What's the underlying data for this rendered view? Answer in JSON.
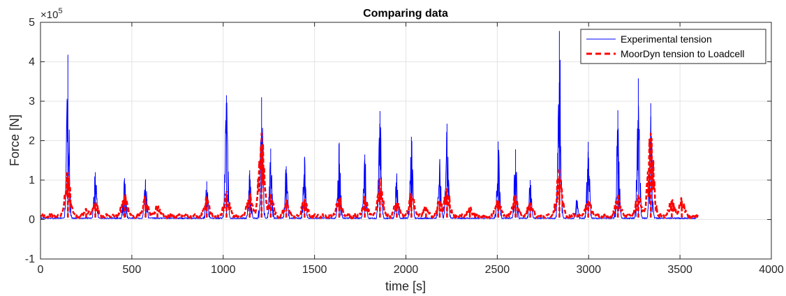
{
  "chart_data": {
    "type": "line",
    "title": "Comparing data",
    "xlabel": "time [s]",
    "ylabel": "Force [N]",
    "xlim": [
      0,
      4000
    ],
    "ylim": [
      -1,
      5
    ],
    "y_multiplier_base": "×10",
    "y_multiplier_exp": "5",
    "x_ticks": [
      0,
      500,
      1000,
      1500,
      2000,
      2500,
      3000,
      3500,
      4000
    ],
    "x_tick_labels": [
      "0",
      "500",
      "1000",
      "1500",
      "2000",
      "2500",
      "3000",
      "3500",
      "4000"
    ],
    "y_ticks": [
      -1,
      0,
      1,
      2,
      3,
      4,
      5
    ],
    "y_tick_labels": [
      "-1",
      "0",
      "1",
      "2",
      "3",
      "4",
      "5"
    ],
    "grid": true,
    "legend_position": "top-right",
    "series": [
      {
        "name": "Experimental tension",
        "color": "#0000ff",
        "style": "solid",
        "baseline": 0.03,
        "end_x": 3590,
        "peaks": [
          {
            "x": 150,
            "y": 4.18
          },
          {
            "x": 300,
            "y": 1.2
          },
          {
            "x": 460,
            "y": 1.05
          },
          {
            "x": 575,
            "y": 1.02
          },
          {
            "x": 910,
            "y": 0.97
          },
          {
            "x": 1018,
            "y": 3.15
          },
          {
            "x": 1145,
            "y": 1.25
          },
          {
            "x": 1210,
            "y": 3.1
          },
          {
            "x": 1260,
            "y": 1.8
          },
          {
            "x": 1345,
            "y": 1.35
          },
          {
            "x": 1445,
            "y": 1.57
          },
          {
            "x": 1635,
            "y": 1.95
          },
          {
            "x": 1775,
            "y": 1.65
          },
          {
            "x": 1858,
            "y": 2.75
          },
          {
            "x": 1950,
            "y": 1.17
          },
          {
            "x": 2030,
            "y": 2.1
          },
          {
            "x": 2185,
            "y": 1.52
          },
          {
            "x": 2225,
            "y": 2.43
          },
          {
            "x": 2505,
            "y": 1.98
          },
          {
            "x": 2600,
            "y": 1.78
          },
          {
            "x": 2680,
            "y": 1.0
          },
          {
            "x": 2840,
            "y": 4.78
          },
          {
            "x": 2935,
            "y": 0.5
          },
          {
            "x": 2998,
            "y": 1.97
          },
          {
            "x": 3160,
            "y": 2.77
          },
          {
            "x": 3272,
            "y": 3.58
          },
          {
            "x": 3340,
            "y": 2.95
          }
        ]
      },
      {
        "name": "MoorDyn tension to Loadcell",
        "color": "#ff0000",
        "style": "dashed",
        "baseline": 0.08,
        "end_x": 3600,
        "peaks": [
          {
            "x": 150,
            "y": 1.2
          },
          {
            "x": 250,
            "y": 0.25
          },
          {
            "x": 300,
            "y": 0.42
          },
          {
            "x": 460,
            "y": 0.6
          },
          {
            "x": 575,
            "y": 0.55
          },
          {
            "x": 640,
            "y": 0.35
          },
          {
            "x": 910,
            "y": 0.55
          },
          {
            "x": 1018,
            "y": 0.72
          },
          {
            "x": 1145,
            "y": 0.62
          },
          {
            "x": 1210,
            "y": 2.2
          },
          {
            "x": 1260,
            "y": 0.62
          },
          {
            "x": 1345,
            "y": 0.42
          },
          {
            "x": 1445,
            "y": 0.45
          },
          {
            "x": 1635,
            "y": 0.52
          },
          {
            "x": 1775,
            "y": 0.5
          },
          {
            "x": 1858,
            "y": 0.98
          },
          {
            "x": 1950,
            "y": 0.42
          },
          {
            "x": 2030,
            "y": 0.62
          },
          {
            "x": 2110,
            "y": 0.32
          },
          {
            "x": 2185,
            "y": 0.48
          },
          {
            "x": 2225,
            "y": 0.82
          },
          {
            "x": 2350,
            "y": 0.25
          },
          {
            "x": 2505,
            "y": 0.5
          },
          {
            "x": 2600,
            "y": 0.62
          },
          {
            "x": 2680,
            "y": 0.38
          },
          {
            "x": 2840,
            "y": 1.28
          },
          {
            "x": 2998,
            "y": 0.48
          },
          {
            "x": 3160,
            "y": 0.58
          },
          {
            "x": 3272,
            "y": 0.58
          },
          {
            "x": 3340,
            "y": 2.2
          },
          {
            "x": 3455,
            "y": 0.48
          },
          {
            "x": 3510,
            "y": 0.52
          }
        ]
      }
    ]
  }
}
